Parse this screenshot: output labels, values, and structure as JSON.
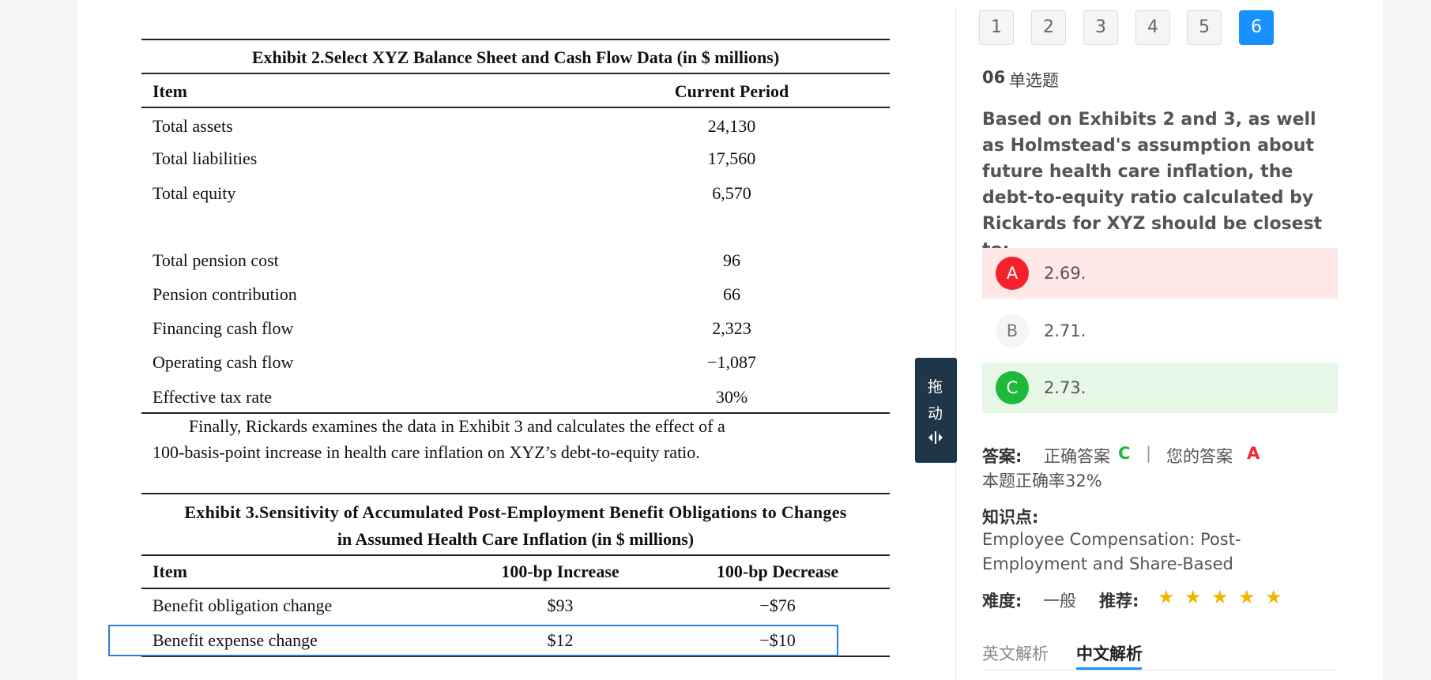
{
  "exhibit2": {
    "title": "Exhibit 2.Select XYZ Balance Sheet and Cash Flow Data (in $ millions)",
    "header": [
      "Item",
      "Current Period"
    ],
    "rows": [
      [
        "Total assets",
        "24,130"
      ],
      [
        "Total liabilities",
        "17,560"
      ],
      [
        "Total equity",
        "6,570"
      ],
      [
        "Total pension cost",
        "96"
      ],
      [
        "Pension contribution",
        "66"
      ],
      [
        "Financing cash flow",
        "2,323"
      ],
      [
        "Operating cash flow",
        "−1,087"
      ],
      [
        "Effective tax rate",
        "30%"
      ]
    ]
  },
  "paragraph": [
    "Finally, Rickards examines the data in Exhibit 3 and calculates the effect of a",
    "100-basis-point increase in health care inflation on XYZ’s debt-to-equity ratio."
  ],
  "exhibit3": {
    "title": [
      "Exhibit 3.Sensitivity of Accumulated Post-Employment Benefit Obligations to Changes",
      "in Assumed Health Care Inflation (in $ millions)"
    ],
    "header": [
      "Item",
      "100-bp Increase",
      "100-bp Decrease"
    ],
    "rows": [
      [
        "Benefit obligation change",
        "$93",
        "−$76"
      ],
      [
        "Benefit expense change",
        "$12",
        "−$10"
      ]
    ]
  },
  "handle": [
    "拖",
    "动"
  ],
  "pages": [
    "1",
    "2",
    "3",
    "4",
    "5",
    "6"
  ],
  "question": {
    "number": "06",
    "type": "单选题",
    "text": "Based on Exhibits 2 and 3, as well as Holmstead's assumption about future health care inflation, the debt-to-equity ratio calculated by Rickards for XYZ should be closest to:",
    "options": [
      {
        "letter": "A",
        "text": "2.69."
      },
      {
        "letter": "B",
        "text": "2.71."
      },
      {
        "letter": "C",
        "text": "2.73."
      }
    ]
  },
  "answer": {
    "label": "答案:",
    "correct_label": "正确答案",
    "correct": "C",
    "separator": "|",
    "yours_label": "您的答案",
    "yours": "A",
    "accuracy": "本题正确率32%"
  },
  "knowledge": {
    "label": "知识点:",
    "text": "Employee Compensation: Post-Employment and Share-Based"
  },
  "meta": {
    "difficulty_label": "难度:",
    "difficulty": "一般",
    "recommend_label": "推荐:"
  },
  "tabs": [
    "英文解析",
    "中文解析"
  ]
}
